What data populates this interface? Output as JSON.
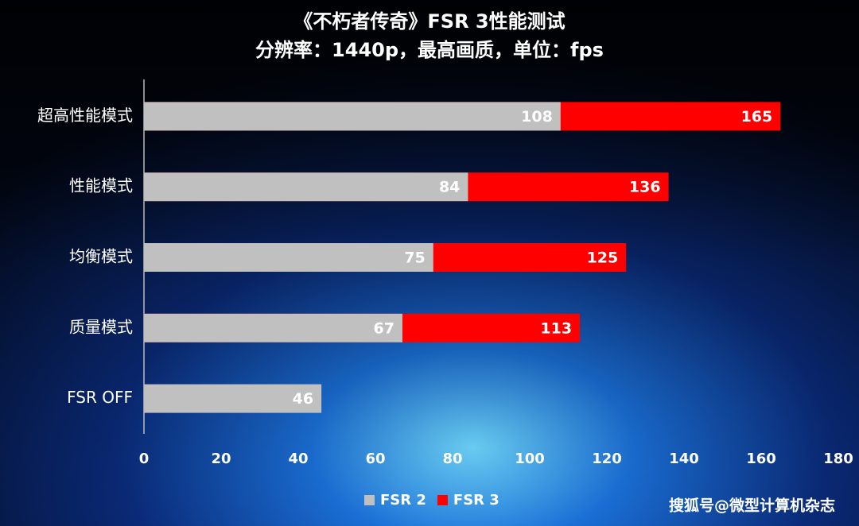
{
  "chart_data": {
    "type": "bar",
    "orientation": "horizontal",
    "title": "《不朽者传奇》FSR 3性能测试",
    "subtitle": "分辨率：1440p，最高画质，单位：fps",
    "categories": [
      "超高性能模式",
      "性能模式",
      "均衡模式",
      "质量模式",
      "FSR OFF"
    ],
    "series": [
      {
        "name": "FSR 2",
        "color": "#c0c0c0",
        "values": [
          108,
          84,
          75,
          67,
          46
        ]
      },
      {
        "name": "FSR 3",
        "color": "#ff0000",
        "values": [
          165,
          136,
          125,
          113,
          null
        ]
      }
    ],
    "xlim": [
      0,
      180
    ],
    "xticks": [
      0,
      20,
      40,
      60,
      80,
      100,
      120,
      140,
      160,
      180
    ],
    "legend": "bottom",
    "watermark": "搜狐号@微型计算机杂志"
  }
}
